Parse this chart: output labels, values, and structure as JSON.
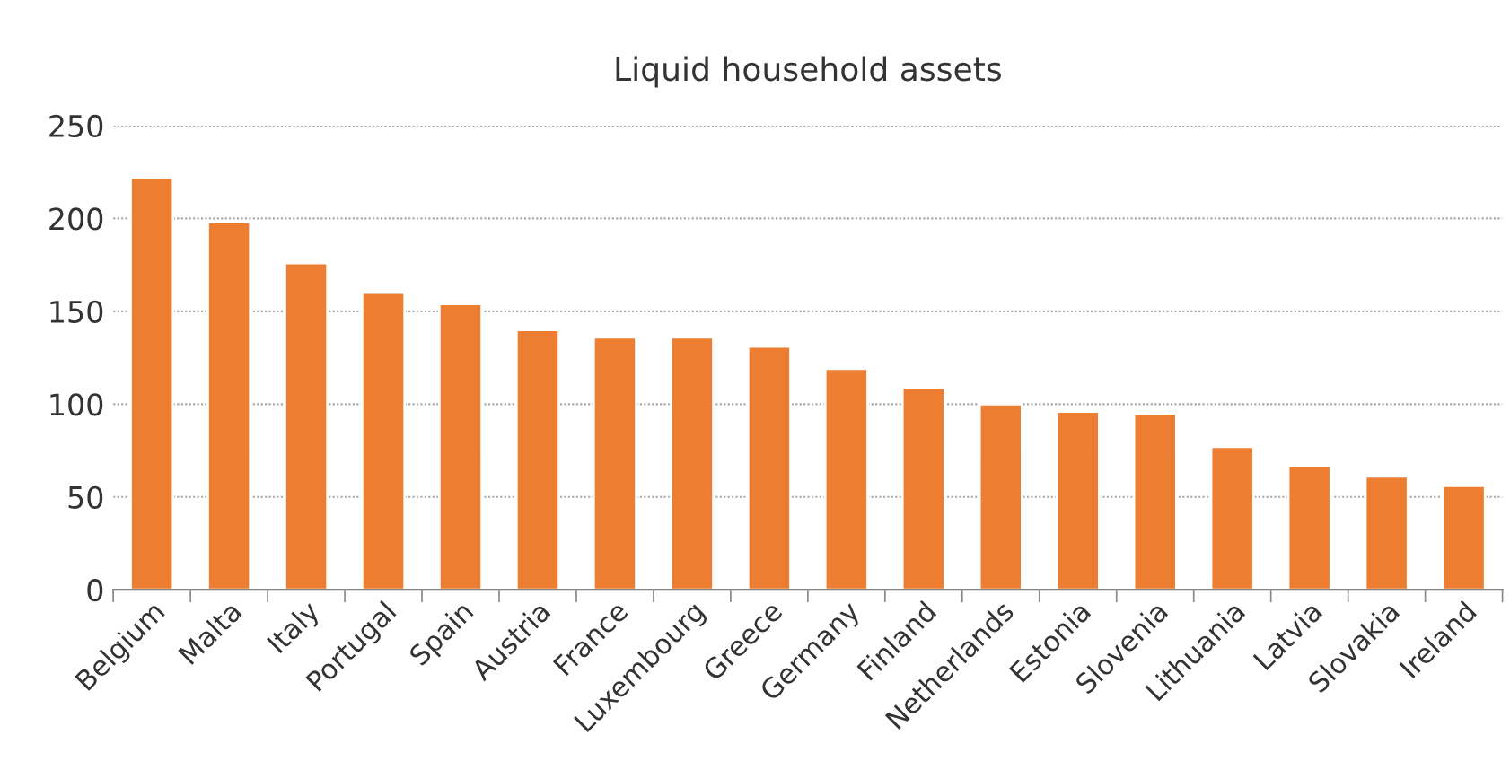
{
  "chart_data": {
    "type": "bar",
    "title": "Liquid household assets",
    "categories": [
      "Belgium",
      "Malta",
      "Italy",
      "Portugal",
      "Spain",
      "Austria",
      "France",
      "Luxembourg",
      "Greece",
      "Germany",
      "Finland",
      "Netherlands",
      "Estonia",
      "Slovenia",
      "Lithuania",
      "Latvia",
      "Slovakia",
      "Ireland"
    ],
    "values": [
      222,
      198,
      176,
      160,
      154,
      140,
      136,
      136,
      131,
      119,
      109,
      100,
      96,
      95,
      77,
      67,
      61,
      56
    ],
    "color": "#ed7d31",
    "ylim": [
      0,
      250
    ],
    "yticks": [
      0,
      50,
      100,
      150,
      200,
      250
    ],
    "grid": "y"
  }
}
